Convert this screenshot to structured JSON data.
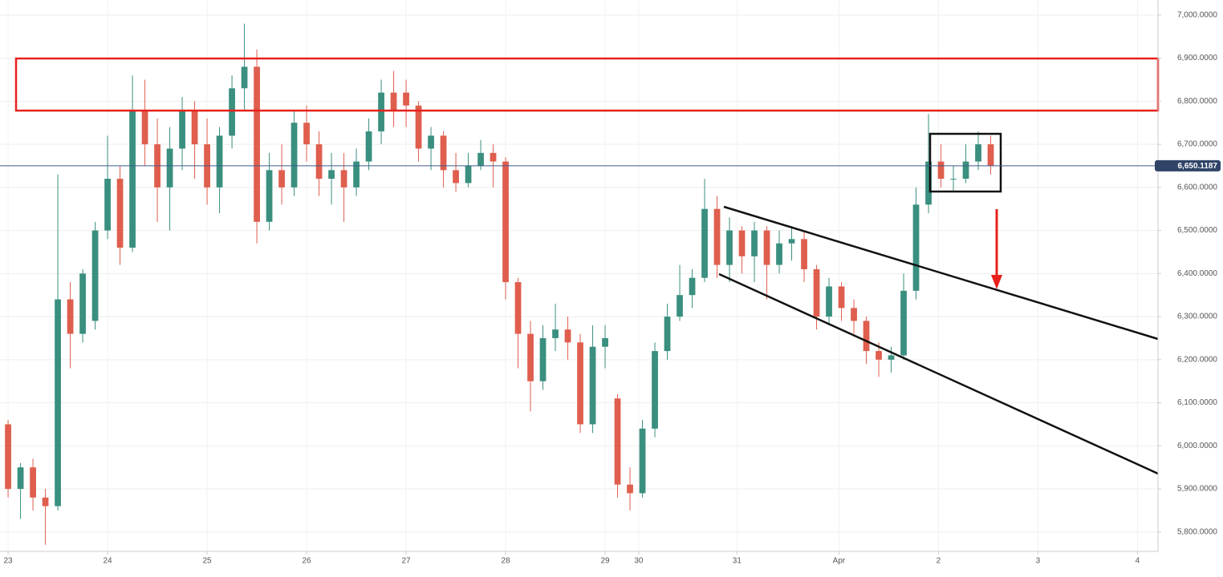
{
  "chart_data": {
    "type": "candlestick",
    "up_color": "#3a8f7f",
    "down_color": "#df5e4e",
    "grid": true,
    "x": [
      0,
      1,
      2,
      3,
      4,
      5,
      6,
      7,
      8,
      9,
      10,
      11,
      12,
      13,
      14,
      15,
      16,
      17,
      18,
      19,
      20,
      21,
      22,
      23,
      24,
      25,
      26,
      27,
      28,
      29,
      30,
      31,
      32,
      33,
      34,
      35,
      36,
      37,
      38,
      39,
      40,
      41,
      42,
      43,
      44,
      45,
      46,
      47,
      48,
      49,
      50,
      51,
      52,
      53,
      54,
      55,
      56,
      57,
      58,
      59,
      60,
      61,
      62,
      63,
      64,
      65,
      66,
      67,
      68,
      69,
      70,
      71,
      72,
      73,
      74,
      75,
      76,
      77,
      78,
      79
    ],
    "open": [
      6050,
      5900,
      5950,
      5880,
      5860,
      6340,
      6260,
      6290,
      6500,
      6620,
      6460,
      6780,
      6700,
      6600,
      6690,
      6780,
      6700,
      6600,
      6720,
      6830,
      6880,
      6520,
      6640,
      6600,
      6750,
      6700,
      6620,
      6640,
      6600,
      6660,
      6730,
      6820,
      6820,
      6790,
      6690,
      6720,
      6640,
      6610,
      6650,
      6680,
      6660,
      6380,
      6260,
      6150,
      6250,
      6270,
      6240,
      6050,
      6230,
      6110,
      5910,
      5890,
      6040,
      6220,
      6300,
      6350,
      6390,
      6550,
      6420,
      6500,
      6440,
      6500,
      6420,
      6470,
      6480,
      6410,
      6300,
      6370,
      6320,
      6290,
      6220,
      6200,
      6210,
      6360,
      6560,
      6660,
      6620,
      6620,
      6660,
      6700
    ],
    "high": [
      6060,
      5960,
      5970,
      5900,
      6630,
      6380,
      6410,
      6520,
      6720,
      6650,
      6860,
      6850,
      6760,
      6740,
      6810,
      6800,
      6760,
      6740,
      6860,
      6980,
      6920,
      6680,
      6700,
      6780,
      6790,
      6730,
      6680,
      6680,
      6690,
      6760,
      6850,
      6870,
      6850,
      6800,
      6740,
      6730,
      6680,
      6680,
      6710,
      6700,
      6670,
      6390,
      6290,
      6280,
      6330,
      6300,
      6260,
      6280,
      6280,
      6120,
      5950,
      6060,
      6240,
      6330,
      6420,
      6410,
      6620,
      6580,
      6530,
      6510,
      6520,
      6510,
      6500,
      6510,
      6500,
      6420,
      6390,
      6380,
      6340,
      6300,
      6240,
      6230,
      6400,
      6600,
      6770,
      6700,
      6650,
      6700,
      6730,
      6720
    ],
    "low": [
      5880,
      5830,
      5850,
      5770,
      5850,
      6180,
      6240,
      6270,
      6480,
      6420,
      6450,
      6650,
      6520,
      6500,
      6640,
      6620,
      6560,
      6540,
      6690,
      6780,
      6470,
      6500,
      6560,
      6580,
      6660,
      6580,
      6560,
      6520,
      6580,
      6640,
      6700,
      6740,
      6740,
      6660,
      6640,
      6600,
      6590,
      6600,
      6640,
      6600,
      6340,
      6180,
      6080,
      6130,
      6220,
      6200,
      6030,
      6030,
      6180,
      5880,
      5850,
      5880,
      6020,
      6200,
      6290,
      6320,
      6380,
      6390,
      6380,
      6400,
      6380,
      6340,
      6400,
      6430,
      6380,
      6270,
      6280,
      6290,
      6260,
      6190,
      6160,
      6170,
      6200,
      6340,
      6540,
      6600,
      6590,
      6610,
      6640,
      6630
    ],
    "close": [
      5900,
      5950,
      5880,
      5860,
      6340,
      6260,
      6400,
      6500,
      6620,
      6460,
      6780,
      6700,
      6600,
      6690,
      6780,
      6700,
      6600,
      6720,
      6830,
      6880,
      6520,
      6640,
      6600,
      6750,
      6700,
      6620,
      6640,
      6600,
      6660,
      6730,
      6820,
      6780,
      6790,
      6690,
      6720,
      6640,
      6610,
      6650,
      6680,
      6660,
      6380,
      6260,
      6150,
      6250,
      6270,
      6240,
      6050,
      6230,
      6250,
      5910,
      5890,
      6040,
      6220,
      6300,
      6350,
      6390,
      6550,
      6420,
      6500,
      6440,
      6500,
      6420,
      6470,
      6480,
      6410,
      6300,
      6370,
      6320,
      6290,
      6220,
      6200,
      6210,
      6360,
      6560,
      6660,
      6620,
      6620,
      6660,
      6700,
      6650
    ],
    "last_price": {
      "value": 6650.1187,
      "label": "6,650.1187"
    },
    "last_price_color": "#3d5a8a",
    "xlim": [
      -0.65,
      92.45
    ],
    "xticks": [
      {
        "value": 0,
        "label": "23"
      },
      {
        "value": 8,
        "label": "24"
      },
      {
        "value": 16,
        "label": "25"
      },
      {
        "value": 24,
        "label": "26"
      },
      {
        "value": 32,
        "label": "27"
      },
      {
        "value": 40,
        "label": "28"
      },
      {
        "value": 48,
        "label": "29"
      },
      {
        "value": 50.7,
        "label": "30"
      },
      {
        "value": 58.6,
        "label": "31"
      },
      {
        "value": 66.8,
        "label": "Apr"
      },
      {
        "value": 74.8,
        "label": "2"
      },
      {
        "value": 82.8,
        "label": "3"
      },
      {
        "value": 90.8,
        "label": "4"
      }
    ],
    "ylim": [
      5755,
      7035
    ],
    "yticks": [
      {
        "value": 7000,
        "label": "7,000.0000"
      },
      {
        "value": 6900,
        "label": "6,900.0000"
      },
      {
        "value": 6800,
        "label": "6,800.0000"
      },
      {
        "value": 6700,
        "label": "6,700.0000"
      },
      {
        "value": 6600,
        "label": "6,600.0000"
      },
      {
        "value": 6500,
        "label": "6,500.0000"
      },
      {
        "value": 6400,
        "label": "6,400.0000"
      },
      {
        "value": 6300,
        "label": "6,300.0000"
      },
      {
        "value": 6200,
        "label": "6,200.0000"
      },
      {
        "value": 6100,
        "label": "6,100.0000"
      },
      {
        "value": 6000,
        "label": "6,000.0000"
      },
      {
        "value": 5900,
        "label": "5,900.0000"
      },
      {
        "value": 5800,
        "label": "5,800.0000"
      }
    ]
  }
}
